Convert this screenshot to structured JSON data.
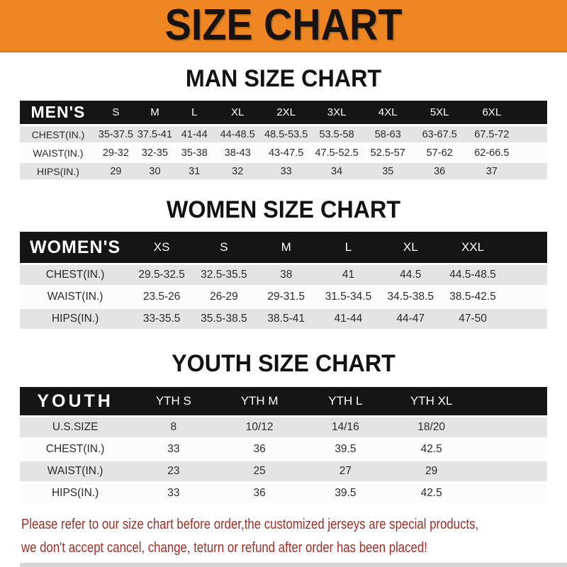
{
  "banner": {
    "title": "SIZE CHART"
  },
  "colors": {
    "banner_bg": "#ee8722",
    "bar_bg": "#151515",
    "row_stripe": "#e4e4e4",
    "footer_red": "#a02e26"
  },
  "sections": [
    {
      "heading": "MAN SIZE CHART",
      "name": "men",
      "table": {
        "header_label": "MEN'S",
        "columns": [
          "S",
          "M",
          "L",
          "XL",
          "2XL",
          "3XL",
          "4XL",
          "5XL",
          "6XL"
        ],
        "rows": [
          {
            "label": "CHEST(IN.)",
            "values": [
              "35-37.5",
              "37.5-41",
              "41-44",
              "44-48.5",
              "48.5-53.5",
              "53.5-58",
              "58-63",
              "63-67.5",
              "67.5-72"
            ]
          },
          {
            "label": "WAIST(IN.)",
            "values": [
              "29-32",
              "32-35",
              "35-38",
              "38-43",
              "43-47.5",
              "47.5-52.5",
              "52.5-57",
              "57-62",
              "62-66.5"
            ]
          },
          {
            "label": "HIPS(IN.)",
            "values": [
              "29",
              "30",
              "31",
              "32",
              "33",
              "34",
              "35",
              "36",
              "37"
            ]
          }
        ]
      }
    },
    {
      "heading": "WOMEN SIZE CHART",
      "name": "women",
      "table": {
        "header_label": "WOMEN'S",
        "columns": [
          "XS",
          "S",
          "M",
          "L",
          "XL",
          "XXL"
        ],
        "rows": [
          {
            "label": "CHEST(IN.)",
            "values": [
              "29.5-32.5",
              "32.5-35.5",
              "38",
              "41",
              "44.5",
              "44.5-48.5"
            ]
          },
          {
            "label": "WAIST(IN.)",
            "values": [
              "23.5-26",
              "26-29",
              "29-31.5",
              "31.5-34.5",
              "34.5-38.5",
              "38.5-42.5"
            ]
          },
          {
            "label": "HIPS(IN.)",
            "values": [
              "33-35.5",
              "35.5-38.5",
              "38.5-41",
              "41-44",
              "44-47",
              "47-50"
            ]
          }
        ]
      }
    },
    {
      "heading": "YOUTH SIZE CHART",
      "name": "youth",
      "table": {
        "header_label": "YOUTH",
        "columns": [
          "YTH S",
          "YTH M",
          "YTH L",
          "YTH XL"
        ],
        "rows": [
          {
            "label": "U.S.SIZE",
            "values": [
              "8",
              "10/12",
              "14/16",
              "18/20"
            ]
          },
          {
            "label": "CHEST(IN.)",
            "values": [
              "33",
              "36",
              "39.5",
              "42.5"
            ]
          },
          {
            "label": "WAIST(IN.)",
            "values": [
              "23",
              "25",
              "27",
              "29"
            ]
          },
          {
            "label": "HIPS(IN.)",
            "values": [
              "33",
              "36",
              "39.5",
              "42.5"
            ]
          }
        ]
      }
    }
  ],
  "footer": {
    "lines": [
      "Please refer to our size chart before order,the customized jerseys are special products,",
      "we don't accept cancel, change, teturn or refund after order has been placed!"
    ]
  }
}
